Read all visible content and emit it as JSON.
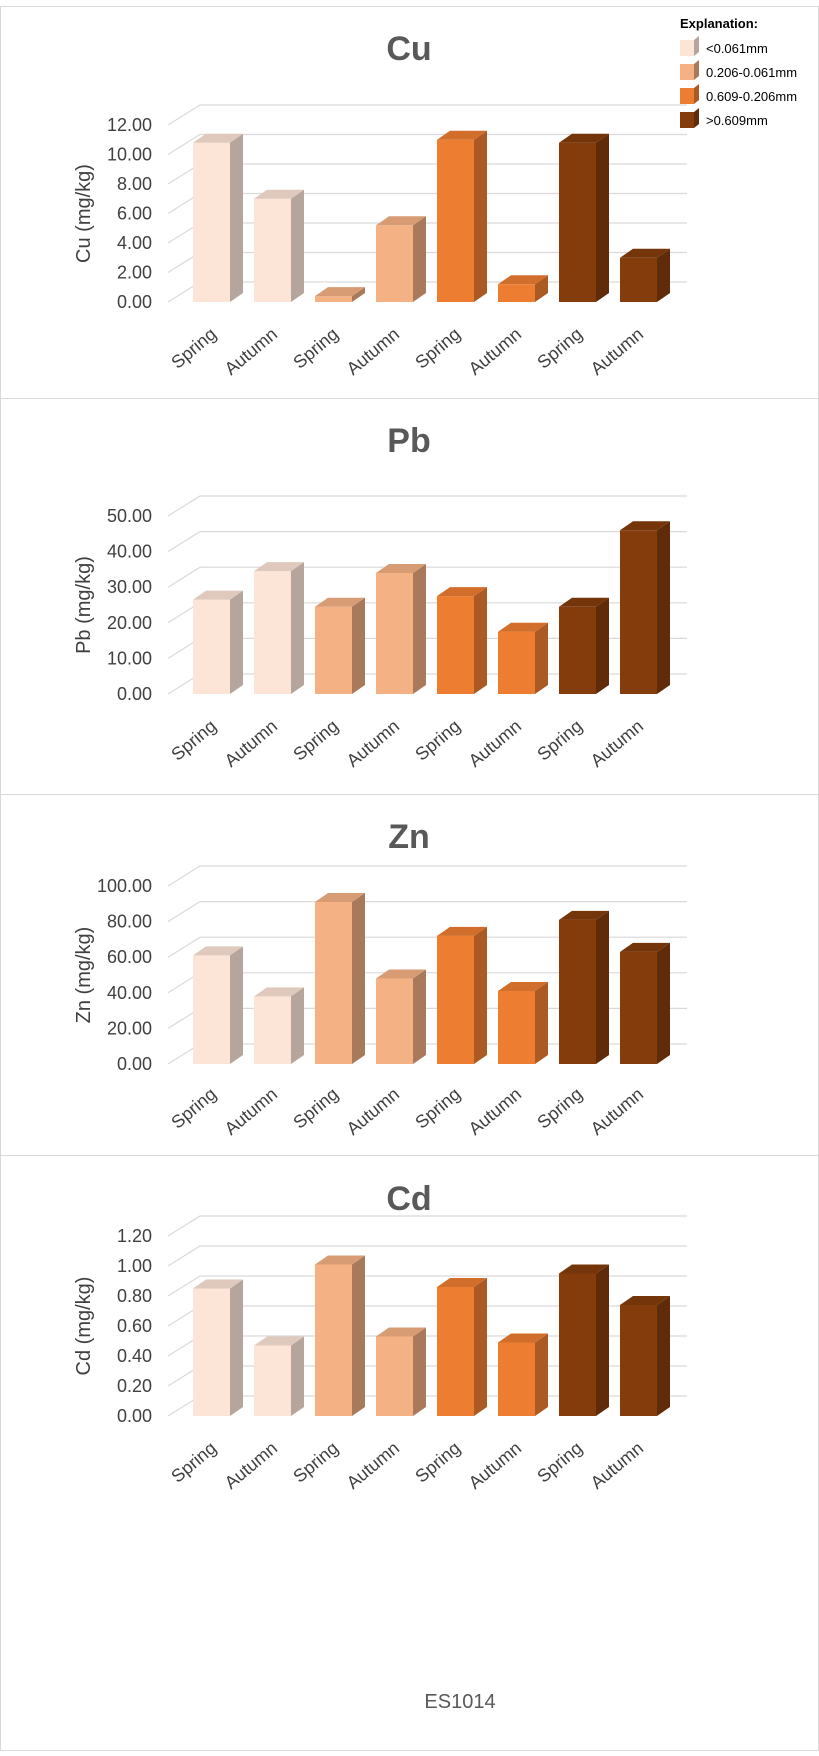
{
  "legend": {
    "title": "Explanation:",
    "items": [
      {
        "label": "<0.061mm",
        "color": "#FCE4D6"
      },
      {
        "label": "0.206-0.061mm",
        "color": "#F4B183"
      },
      {
        "label": "0.609-0.206mm",
        "color": "#ED7D31"
      },
      {
        "label": ">0.609mm",
        "color": "#843C0C"
      }
    ]
  },
  "footer": {
    "site_label": "ES1014"
  },
  "chart_data": [
    {
      "type": "bar",
      "title": "Cu",
      "ylabel": "Cu (mg/kg)",
      "xlabel": "",
      "categories": [
        "Spring",
        "Autumn",
        "Spring",
        "Autumn",
        "Spring",
        "Autumn",
        "Spring",
        "Autumn"
      ],
      "values": [
        10.8,
        7.0,
        0.4,
        5.2,
        11.0,
        1.2,
        10.8,
        3.0
      ],
      "bar_colors": [
        "#FCE4D6",
        "#FCE4D6",
        "#F4B183",
        "#F4B183",
        "#ED7D31",
        "#ED7D31",
        "#843C0C",
        "#843C0C"
      ],
      "ylim": [
        0,
        12
      ],
      "yticks": [
        "0.00",
        "2.00",
        "4.00",
        "6.00",
        "8.00",
        "10.00",
        "12.00"
      ],
      "grid": true
    },
    {
      "type": "bar",
      "title": "Pb",
      "ylabel": "Pb  (mg/kg)",
      "xlabel": "",
      "categories": [
        "Spring",
        "Autumn",
        "Spring",
        "Autumn",
        "Spring",
        "Autumn",
        "Spring",
        "Autumn"
      ],
      "values": [
        26.5,
        34.5,
        24.5,
        34.0,
        27.5,
        17.5,
        24.5,
        46.0
      ],
      "bar_colors": [
        "#FCE4D6",
        "#FCE4D6",
        "#F4B183",
        "#F4B183",
        "#ED7D31",
        "#ED7D31",
        "#843C0C",
        "#843C0C"
      ],
      "ylim": [
        0,
        50
      ],
      "yticks": [
        "0.00",
        "10.00",
        "20.00",
        "30.00",
        "40.00",
        "50.00"
      ],
      "grid": true
    },
    {
      "type": "bar",
      "title": "Zn",
      "ylabel": "Zn  (mg/kg)",
      "xlabel": "",
      "categories": [
        "Spring",
        "Autumn",
        "Spring",
        "Autumn",
        "Spring",
        "Autumn",
        "Spring",
        "Autumn"
      ],
      "values": [
        61,
        38,
        91,
        48,
        72,
        41,
        81,
        63
      ],
      "bar_colors": [
        "#FCE4D6",
        "#FCE4D6",
        "#F4B183",
        "#F4B183",
        "#ED7D31",
        "#ED7D31",
        "#843C0C",
        "#843C0C"
      ],
      "ylim": [
        0,
        100
      ],
      "yticks": [
        "0.00",
        "20.00",
        "40.00",
        "60.00",
        "80.00",
        "100.00"
      ],
      "grid": true
    },
    {
      "type": "bar",
      "title": "Cd",
      "ylabel": "Cd (mg/kg)",
      "xlabel": "",
      "categories": [
        "Spring",
        "Autumn",
        "Spring",
        "Autumn",
        "Spring",
        "Autumn",
        "Spring",
        "Autumn"
      ],
      "values": [
        0.85,
        0.47,
        1.01,
        0.53,
        0.86,
        0.49,
        0.95,
        0.74
      ],
      "bar_colors": [
        "#FCE4D6",
        "#FCE4D6",
        "#F4B183",
        "#F4B183",
        "#ED7D31",
        "#ED7D31",
        "#843C0C",
        "#843C0C"
      ],
      "ylim": [
        0,
        1.2
      ],
      "yticks": [
        "0.00",
        "0.20",
        "0.40",
        "0.60",
        "0.80",
        "1.00",
        "1.20"
      ],
      "grid": true
    }
  ]
}
